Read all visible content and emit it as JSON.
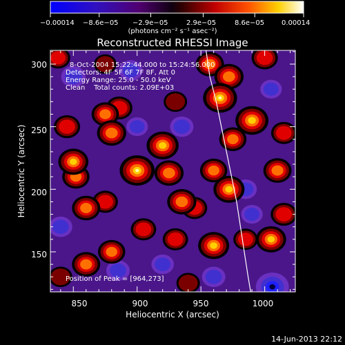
{
  "colorbar": {
    "ticks": [
      "−0.00014",
      "−8.6e−05",
      "−2.9e−05",
      "2.9e−05",
      "8.6e−05",
      "0.00014"
    ],
    "tick_values": [
      -0.00014,
      -8.6e-05,
      -2.9e-05,
      2.9e-05,
      8.6e-05,
      0.00014
    ],
    "units": "(photons cm⁻² s⁻¹ asec⁻²)"
  },
  "info": {
    "line1": "8-Oct-2004 15:22:44.000 to 15:24:56.000",
    "line2": "Detectors: 4F 5F 6F 7F 8F, Att 0",
    "line3": "Energy Range: 25.0 - 50.0 keV",
    "line4": "Clean    Total counts: 2.09E+03"
  },
  "peak_text": "Position of Peak = [964,273]",
  "footer_date": "14-Jun-2013 22:12",
  "chart_data": {
    "type": "heatmap",
    "title": "Reconstructed RHESSI Image",
    "xlabel": "Heliocentric X (arcsec)",
    "ylabel": "Heliocentric Y (arcsec)",
    "xlim": [
      832,
      1024
    ],
    "ylim": [
      118,
      311
    ],
    "xticks": [
      850,
      900,
      950,
      1000
    ],
    "yticks": [
      150,
      200,
      250,
      300
    ],
    "xtick_labels": [
      "850",
      "900",
      "950",
      "1000"
    ],
    "ytick_labels": [
      "150",
      "200",
      "250",
      "300"
    ],
    "colormap": [
      "#0000ff",
      "#2020d0",
      "#5010a0",
      "#400040",
      "#000000",
      "#800000",
      "#ff0000",
      "#ff8000",
      "#ffff00",
      "#ffffff"
    ],
    "peak_position": [
      964,
      273
    ],
    "limb_curve": [
      [
        954,
        311
      ],
      [
        957,
        290
      ],
      [
        962,
        270
      ],
      [
        966,
        250
      ],
      [
        970,
        230
      ],
      [
        974,
        210
      ],
      [
        978,
        190
      ],
      [
        981,
        170
      ],
      [
        984,
        150
      ],
      [
        987,
        130
      ],
      [
        989,
        118
      ]
    ],
    "features": [
      {
        "x": 838,
        "y": 305,
        "level": 0.45
      },
      {
        "x": 845,
        "y": 250,
        "level": 0.55
      },
      {
        "x": 850,
        "y": 222,
        "level": 0.75
      },
      {
        "x": 852,
        "y": 210,
        "level": 0.6
      },
      {
        "x": 860,
        "y": 185,
        "level": 0.65
      },
      {
        "x": 875,
        "y": 190,
        "level": 0.5
      },
      {
        "x": 875,
        "y": 260,
        "level": 0.6
      },
      {
        "x": 880,
        "y": 245,
        "level": 0.7
      },
      {
        "x": 886,
        "y": 265,
        "level": 0.55
      },
      {
        "x": 875,
        "y": 300,
        "level": 0.35
      },
      {
        "x": 900,
        "y": 215,
        "level": 1.0
      },
      {
        "x": 920,
        "y": 235,
        "level": 0.85
      },
      {
        "x": 925,
        "y": 213,
        "level": 0.7
      },
      {
        "x": 930,
        "y": 270,
        "level": 0.4
      },
      {
        "x": 935,
        "y": 190,
        "level": 0.7
      },
      {
        "x": 945,
        "y": 185,
        "level": 0.5
      },
      {
        "x": 957,
        "y": 300,
        "level": 0.65
      },
      {
        "x": 965,
        "y": 273,
        "level": 0.95
      },
      {
        "x": 972,
        "y": 290,
        "level": 0.7
      },
      {
        "x": 990,
        "y": 255,
        "level": 0.9
      },
      {
        "x": 975,
        "y": 240,
        "level": 0.6
      },
      {
        "x": 972,
        "y": 200,
        "level": 0.8
      },
      {
        "x": 960,
        "y": 215,
        "level": 0.6
      },
      {
        "x": 1010,
        "y": 215,
        "level": 0.65
      },
      {
        "x": 1015,
        "y": 245,
        "level": 0.5
      },
      {
        "x": 1000,
        "y": 305,
        "level": 0.55
      },
      {
        "x": 880,
        "y": 150,
        "level": 0.6
      },
      {
        "x": 860,
        "y": 140,
        "level": 0.65
      },
      {
        "x": 905,
        "y": 168,
        "level": 0.5
      },
      {
        "x": 930,
        "y": 160,
        "level": 0.5
      },
      {
        "x": 960,
        "y": 155,
        "level": 0.8
      },
      {
        "x": 985,
        "y": 160,
        "level": 0.45
      },
      {
        "x": 1005,
        "y": 160,
        "level": 0.75
      },
      {
        "x": 1015,
        "y": 180,
        "level": 0.55
      },
      {
        "x": 940,
        "y": 125,
        "level": 0.4
      },
      {
        "x": 840,
        "y": 130,
        "level": 0.4
      },
      {
        "x": 850,
        "y": 290,
        "level": -0.45
      },
      {
        "x": 895,
        "y": 295,
        "level": -0.4
      },
      {
        "x": 935,
        "y": 250,
        "level": -0.4
      },
      {
        "x": 840,
        "y": 170,
        "level": -0.4
      },
      {
        "x": 885,
        "y": 135,
        "level": -0.4
      },
      {
        "x": 1005,
        "y": 280,
        "level": -0.3
      },
      {
        "x": 1006,
        "y": 122,
        "level": -0.9
      },
      {
        "x": 985,
        "y": 200,
        "level": -0.35
      },
      {
        "x": 920,
        "y": 140,
        "level": -0.35
      },
      {
        "x": 960,
        "y": 130,
        "level": -0.4
      },
      {
        "x": 990,
        "y": 180,
        "level": -0.3
      },
      {
        "x": 900,
        "y": 250,
        "level": -0.3
      }
    ]
  }
}
